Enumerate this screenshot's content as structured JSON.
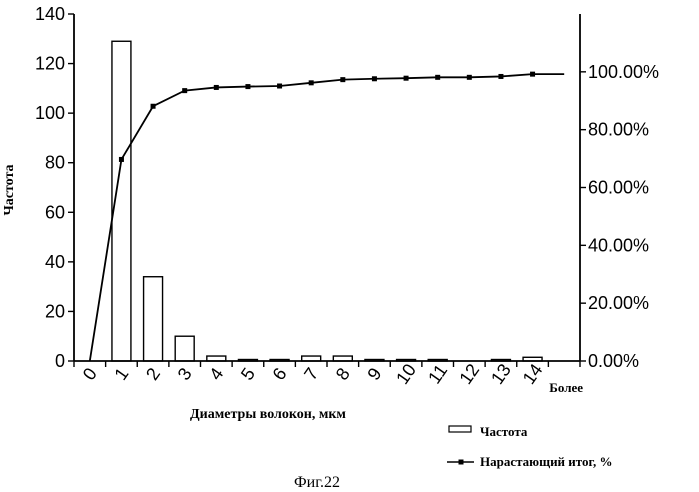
{
  "chart_data": {
    "type": "bar",
    "categories": [
      "0",
      "1",
      "2",
      "3",
      "4",
      "5",
      "6",
      "7",
      "8",
      "9",
      "10",
      "11",
      "12",
      "13",
      "14",
      "Более"
    ],
    "series": [
      {
        "name": "Частота",
        "type": "bar",
        "axis": "left",
        "values": [
          0,
          129,
          34,
          10,
          2,
          0.5,
          0.5,
          2,
          2,
          0.5,
          0.5,
          0.5,
          0,
          0.5,
          1.5,
          0
        ]
      },
      {
        "name": "Нарастающий итог, %",
        "type": "line",
        "axis": "right",
        "values": [
          0,
          69.7,
          88.1,
          93.5,
          94.6,
          94.9,
          95.1,
          96.2,
          97.3,
          97.6,
          97.8,
          98.1,
          98.1,
          98.4,
          99.2,
          99.2
        ]
      }
    ],
    "ylabel": "Частота",
    "xlabel": "Диаметры волокон, мкм",
    "ylim": [
      0,
      140
    ],
    "yticks": [
      0,
      20,
      40,
      60,
      80,
      100,
      120,
      140
    ],
    "y2lim": [
      0,
      120
    ],
    "y2ticks": [
      "0.00%",
      "20.00%",
      "40.00%",
      "60.00%",
      "80.00%",
      "100.00%"
    ],
    "legend": [
      {
        "label": "Частота",
        "kind": "bar"
      },
      {
        "label": "Нарастающий итог, %",
        "kind": "line"
      }
    ],
    "legend_position": "bottom-right",
    "grid": false
  },
  "caption": "Фиг.22"
}
